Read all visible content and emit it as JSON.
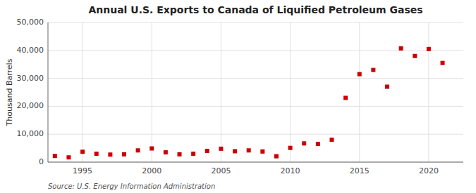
{
  "chart_data": {
    "type": "scatter",
    "title": "Annual U.S. Exports to Canada of Liquified Petroleum Gases",
    "ylabel": "Thousand Barrels",
    "source": "Source: U.S. Energy Information Administration",
    "x": [
      1993,
      1994,
      1995,
      1996,
      1997,
      1998,
      1999,
      2000,
      2001,
      2002,
      2003,
      2004,
      2005,
      2006,
      2007,
      2008,
      2009,
      2010,
      2011,
      2012,
      2013,
      2014,
      2015,
      2016,
      2017,
      2018,
      2019,
      2020,
      2021
    ],
    "values": [
      2200,
      1700,
      3700,
      3000,
      2700,
      2800,
      4200,
      4900,
      3500,
      2800,
      3000,
      4000,
      4800,
      3900,
      4200,
      3800,
      2100,
      5100,
      6700,
      6500,
      8000,
      23000,
      31500,
      33000,
      27000,
      40700,
      38000,
      40500,
      35500
    ],
    "color": "#cc0000",
    "marker": "square",
    "xlim": [
      1992.5,
      2022.5
    ],
    "xticks": [
      1995,
      2000,
      2005,
      2010,
      2015,
      2020
    ],
    "ylim": [
      0,
      50000
    ],
    "yticks": [
      0,
      {
        "value": 10000,
        "label": "10,000"
      },
      {
        "value": 20000,
        "label": "20,000"
      },
      {
        "value": 30000,
        "label": "30,000"
      },
      {
        "value": 40000,
        "label": "40,000"
      },
      {
        "value": 50000,
        "label": "50,000"
      }
    ],
    "grid": true
  }
}
